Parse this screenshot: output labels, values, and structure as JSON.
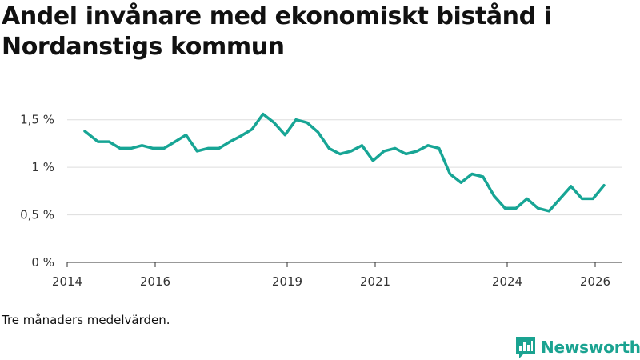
{
  "colors": {
    "line": "#17a595",
    "brand": "#1aa391",
    "grid": "#dddddd",
    "axis": "#333333"
  },
  "footer": {
    "note": "Tre månaders medelvärden.",
    "brand": "Newsworthy",
    "brand_icon": "bar-chart-icon"
  },
  "chart_data": {
    "type": "line",
    "title": "Andel invånare med ekonomiskt bistånd i Nordanstigs kommun",
    "xlabel": "",
    "ylabel": "",
    "ylim": [
      0,
      1.75
    ],
    "xlim": [
      2014,
      2026.6
    ],
    "yticks": [
      {
        "value": 0,
        "label": "0 %"
      },
      {
        "value": 0.5,
        "label": "0,5 %"
      },
      {
        "value": 1,
        "label": "1 %"
      },
      {
        "value": 1.5,
        "label": "1,5 %"
      }
    ],
    "xticks": [
      {
        "value": 2014,
        "label": "2014"
      },
      {
        "value": 2016,
        "label": "2016"
      },
      {
        "value": 2019,
        "label": "2019"
      },
      {
        "value": 2021,
        "label": "2021"
      },
      {
        "value": 2024,
        "label": "2024"
      },
      {
        "value": 2026,
        "label": "2026"
      }
    ],
    "grid": true,
    "series": [
      {
        "name": "Andel invånare med ekonomiskt bistånd",
        "points": [
          [
            2014.4,
            1.38
          ],
          [
            2014.7,
            1.27
          ],
          [
            2014.95,
            1.27
          ],
          [
            2015.2,
            1.2
          ],
          [
            2015.45,
            1.2
          ],
          [
            2015.7,
            1.23
          ],
          [
            2015.95,
            1.2
          ],
          [
            2016.2,
            1.2
          ],
          [
            2016.45,
            1.27
          ],
          [
            2016.7,
            1.34
          ],
          [
            2016.95,
            1.17
          ],
          [
            2017.2,
            1.2
          ],
          [
            2017.45,
            1.2
          ],
          [
            2017.7,
            1.27
          ],
          [
            2017.95,
            1.33
          ],
          [
            2018.2,
            1.4
          ],
          [
            2018.45,
            1.56
          ],
          [
            2018.7,
            1.47
          ],
          [
            2018.95,
            1.34
          ],
          [
            2019.2,
            1.5
          ],
          [
            2019.45,
            1.47
          ],
          [
            2019.7,
            1.37
          ],
          [
            2019.95,
            1.2
          ],
          [
            2020.2,
            1.14
          ],
          [
            2020.45,
            1.17
          ],
          [
            2020.7,
            1.23
          ],
          [
            2020.95,
            1.07
          ],
          [
            2021.2,
            1.17
          ],
          [
            2021.45,
            1.2
          ],
          [
            2021.7,
            1.14
          ],
          [
            2021.95,
            1.17
          ],
          [
            2022.2,
            1.23
          ],
          [
            2022.45,
            1.2
          ],
          [
            2022.7,
            0.93
          ],
          [
            2022.95,
            0.84
          ],
          [
            2023.2,
            0.93
          ],
          [
            2023.45,
            0.9
          ],
          [
            2023.7,
            0.7
          ],
          [
            2023.95,
            0.57
          ],
          [
            2024.2,
            0.57
          ],
          [
            2024.45,
            0.67
          ],
          [
            2024.7,
            0.57
          ],
          [
            2024.95,
            0.54
          ],
          [
            2025.2,
            0.67
          ],
          [
            2025.45,
            0.8
          ],
          [
            2025.7,
            0.67
          ],
          [
            2025.95,
            0.67
          ],
          [
            2026.2,
            0.81
          ]
        ]
      }
    ]
  }
}
